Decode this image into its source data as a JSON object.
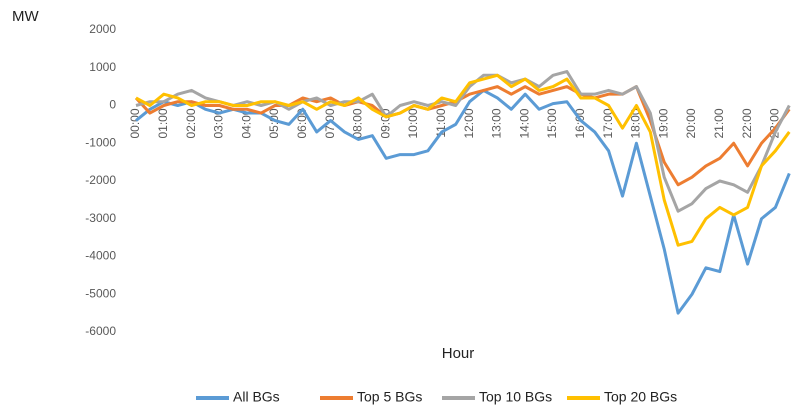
{
  "chart_data": {
    "type": "line",
    "y_unit_label": "MW",
    "x_axis_title": "Hour",
    "categories": [
      "00:00",
      null,
      "01:00",
      null,
      "02:00",
      null,
      "03:00",
      null,
      "04:00",
      null,
      "05:00",
      null,
      "06:00",
      null,
      "07:00",
      null,
      "08:00",
      null,
      "09:00",
      null,
      "10:00",
      null,
      "11:00",
      null,
      "12:00",
      null,
      "13:00",
      null,
      "14:00",
      null,
      "15:00",
      null,
      "16:00",
      null,
      "17:00",
      null,
      "18:00",
      null,
      "19:00",
      null,
      "20:00",
      null,
      "21:00",
      null,
      "22:00",
      null,
      "23:00",
      null
    ],
    "ylim": [
      -6000,
      2000
    ],
    "yticks": [
      -6000,
      -5000,
      -4000,
      -3000,
      -2000,
      -1000,
      0,
      1000,
      2000
    ],
    "grid": false,
    "legend": "bottom",
    "series": [
      {
        "name": "All BGs",
        "color": "#5b9bd5",
        "values": [
          -400,
          -100,
          100,
          0,
          100,
          -100,
          -200,
          -100,
          -200,
          -200,
          -400,
          -500,
          -100,
          -700,
          -400,
          -700,
          -900,
          -800,
          -1400,
          -1300,
          -1300,
          -1200,
          -700,
          -500,
          100,
          400,
          200,
          -100,
          300,
          -100,
          50,
          100,
          -400,
          -700,
          -1200,
          -2400,
          -1000,
          -2400,
          -3800,
          -5500,
          -5000,
          -4300,
          -4400,
          -2900,
          -4200,
          -3000,
          -2700,
          -1800
        ]
      },
      {
        "name": "Top 5 BGs",
        "color": "#ed7d31",
        "values": [
          200,
          -200,
          0,
          100,
          100,
          0,
          0,
          -100,
          -100,
          -200,
          0,
          0,
          200,
          100,
          200,
          0,
          100,
          0,
          -300,
          -200,
          0,
          -100,
          0,
          100,
          300,
          400,
          500,
          300,
          500,
          300,
          400,
          500,
          300,
          200,
          300,
          300,
          500,
          -400,
          -1500,
          -2100,
          -1900,
          -1600,
          -1400,
          -1000,
          -1600,
          -1000,
          -600,
          -100
        ]
      },
      {
        "name": "Top 10 BGs",
        "color": "#a5a5a5",
        "values": [
          0,
          100,
          100,
          300,
          400,
          200,
          100,
          0,
          100,
          0,
          100,
          -100,
          100,
          200,
          0,
          100,
          100,
          300,
          -300,
          0,
          100,
          0,
          100,
          0,
          500,
          800,
          800,
          600,
          700,
          500,
          800,
          900,
          300,
          300,
          400,
          300,
          500,
          -200,
          -1900,
          -2800,
          -2600,
          -2200,
          -2000,
          -2100,
          -2300,
          -1600,
          -700,
          0
        ]
      },
      {
        "name": "Top 20 BGs",
        "color": "#ffc000",
        "values": [
          200,
          0,
          300,
          200,
          0,
          100,
          100,
          0,
          0,
          100,
          100,
          0,
          100,
          -100,
          100,
          0,
          200,
          -100,
          -300,
          -200,
          0,
          -100,
          200,
          100,
          600,
          700,
          800,
          500,
          700,
          400,
          500,
          700,
          200,
          200,
          0,
          -600,
          0,
          -700,
          -2500,
          -3700,
          -3600,
          -3000,
          -2700,
          -2900,
          -2700,
          -1600,
          -1200,
          -700
        ]
      }
    ]
  }
}
